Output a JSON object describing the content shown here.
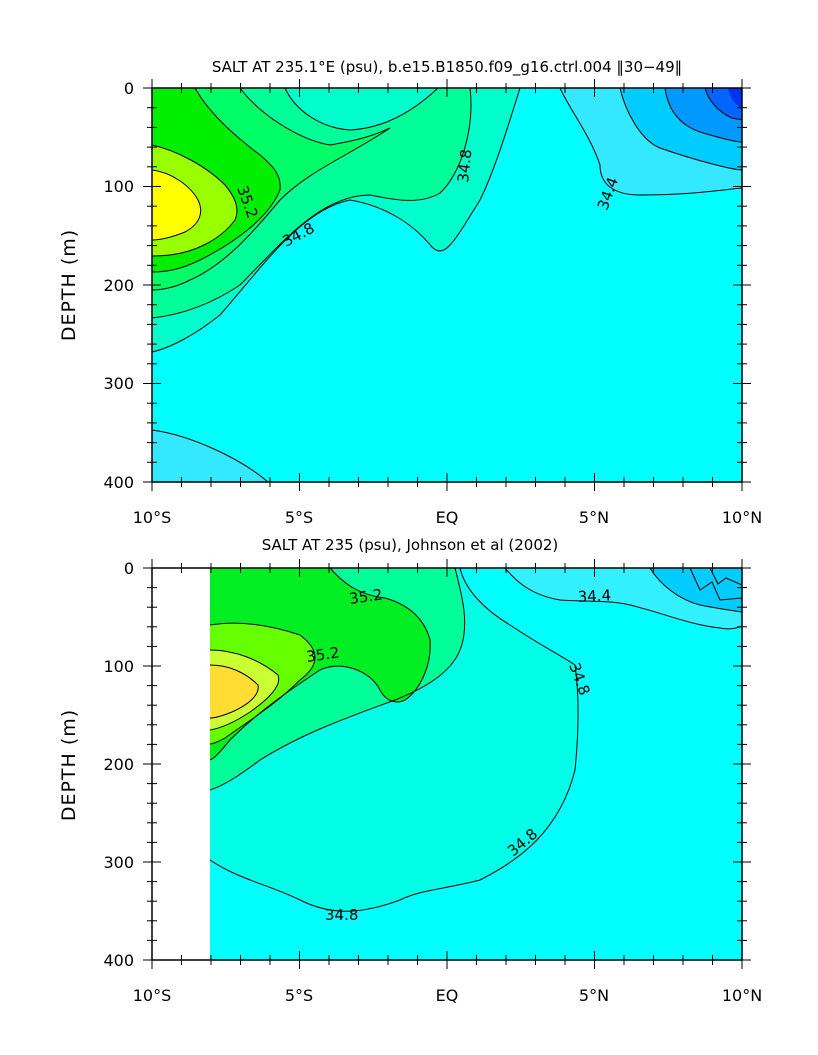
{
  "chart_data": [
    {
      "type": "contour",
      "title": "SALT AT 235.1°E (psu), b.e15.B1850.f09_g16.ctrl.004 ‖30−49‖",
      "ylabel": "DEPTH (m)",
      "xlabel": "",
      "xlim": [
        -10,
        10
      ],
      "ylim": [
        400,
        0
      ],
      "x_ticks": [
        "10°S",
        "5°S",
        "EQ",
        "5°N",
        "10°N"
      ],
      "y_ticks": [
        "0",
        "100",
        "200",
        "300",
        "400"
      ],
      "contour_labels": [
        "35.2",
        "34.8",
        "34.8",
        "34.4"
      ],
      "colors": {
        "bg": "#00ffff",
        "s34_2": "#33e8ff",
        "s34_4": "#00ccff",
        "s34_0": "#0099ff",
        "s33_8": "#0066ff",
        "s34_8": "#00ffcc",
        "s35_0": "#00ff99",
        "s35_2": "#00ff66",
        "s35_4": "#00ee00",
        "s35_6": "#99ff00",
        "s35_8": "#ffff00"
      }
    },
    {
      "type": "contour",
      "title": "SALT AT 235 (psu), Johnson et al (2002)",
      "ylabel": "DEPTH (m)",
      "xlabel": "",
      "xlim": [
        -10,
        10
      ],
      "ylim": [
        400,
        0
      ],
      "x_ticks": [
        "10°S",
        "5°S",
        "EQ",
        "5°N",
        "10°N"
      ],
      "y_ticks": [
        "0",
        "100",
        "200",
        "300",
        "400"
      ],
      "contour_labels": [
        "34.4",
        "35.2",
        "35.2",
        "34.8",
        "34.8",
        "34.8"
      ],
      "colors": {
        "bg": "#00ffe6",
        "s34_6": "#00ffff",
        "s34_4": "#33f0ff",
        "s34_2": "#00ccff",
        "s35_0": "#00ff99",
        "s35_2": "#00ee22",
        "s35_4": "#66ff00",
        "s35_6": "#ccff33",
        "s35_8": "#ffdd33"
      }
    }
  ]
}
